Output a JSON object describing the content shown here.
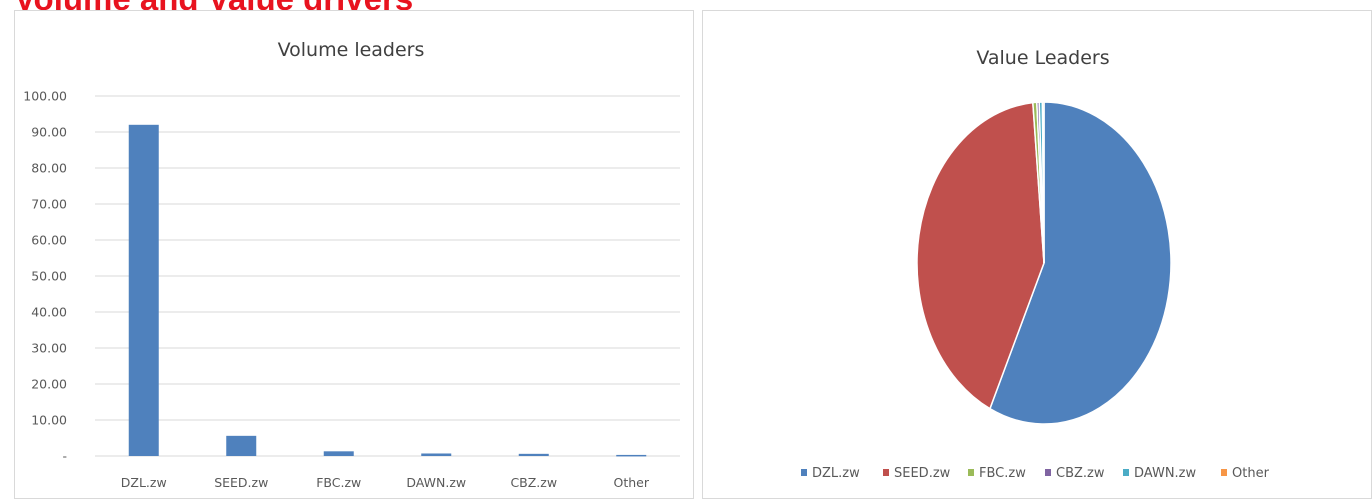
{
  "page": {
    "heading": "Volume and Value drivers"
  },
  "colors": {
    "heading": "#e8131f",
    "bar": "#4f81bd",
    "gridline": "#d9d9d9",
    "axis_text": "#595959",
    "title_text": "#404040"
  },
  "chart_data": [
    {
      "type": "bar",
      "title": "Volume leaders",
      "categories": [
        "DZL.zw",
        "SEED.zw",
        "FBC.zw",
        "DAWN.zw",
        "CBZ.zw",
        "Other"
      ],
      "values": [
        92.0,
        5.6,
        1.3,
        0.7,
        0.6,
        0.3
      ],
      "ytick_labels": [
        "-",
        "10.00",
        "20.00",
        "30.00",
        "40.00",
        "50.00",
        "60.00",
        "70.00",
        "80.00",
        "90.00",
        "100.00"
      ],
      "ylim": [
        0,
        100
      ],
      "grid": true,
      "legend": "none"
    },
    {
      "type": "pie",
      "title": "Value Leaders",
      "categories": [
        "DZL.zw",
        "SEED.zw",
        "FBC.zw",
        "CBZ.zw",
        "DAWN.zw",
        "Other"
      ],
      "values": [
        57.0,
        41.6,
        0.5,
        0.3,
        0.4,
        0.2
      ],
      "colors": [
        "#4f81bd",
        "#c0504d",
        "#9bbb59",
        "#8064a2",
        "#4bacc6",
        "#f79646"
      ],
      "legend": "bottom"
    }
  ]
}
